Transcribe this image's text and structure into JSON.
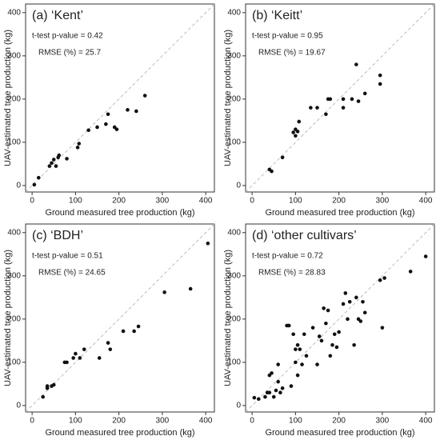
{
  "chart_data": [
    {
      "type": "scatter",
      "title": "(a) ‘Kent’",
      "annotations": [
        "t-test p-value = 0.42",
        "RMSE (%) = 25.7"
      ],
      "x_label": "Ground measured tree production (kg)",
      "y_label": "UAV-estimated tree production (kg)",
      "color": "#111111",
      "xlim": [
        -15,
        420
      ],
      "ylim": [
        -15,
        420
      ],
      "xticks": [
        0,
        100,
        200,
        300,
        400
      ],
      "yticks": [
        0,
        100,
        200,
        300,
        400
      ],
      "x": [
        5,
        15,
        40,
        45,
        50,
        55,
        60,
        62,
        80,
        105,
        108,
        130,
        150,
        170,
        175,
        190,
        195,
        220,
        240,
        260
      ],
      "values": [
        2,
        18,
        45,
        52,
        60,
        45,
        65,
        70,
        62,
        88,
        97,
        128,
        135,
        142,
        165,
        135,
        130,
        175,
        172,
        208
      ]
    },
    {
      "type": "scatter",
      "title": "(b) ‘Keitt’",
      "annotations": [
        "t-test p-value = 0.95",
        "RMSE (%) = 19.67"
      ],
      "x_label": "Ground measured tree production (kg)",
      "y_label": "UAV-estimated tree production (kg)",
      "color": "#111111",
      "xlim": [
        -15,
        420
      ],
      "ylim": [
        -15,
        420
      ],
      "xticks": [
        0,
        100,
        200,
        300,
        400
      ],
      "yticks": [
        0,
        100,
        200,
        300,
        400
      ],
      "x": [
        40,
        45,
        70,
        95,
        100,
        100,
        105,
        108,
        135,
        150,
        170,
        175,
        180,
        210,
        210,
        230,
        240,
        245,
        260,
        295,
        295
      ],
      "values": [
        37,
        33,
        65,
        123,
        115,
        130,
        125,
        148,
        180,
        180,
        165,
        200,
        200,
        180,
        200,
        200,
        280,
        195,
        213,
        255,
        235
      ]
    },
    {
      "type": "scatter",
      "title": "(c) ‘BDH’",
      "annotations": [
        "t-test p-value = 0.51",
        "RMSE (%) = 24.65"
      ],
      "x_label": "Ground measured tree production (kg)",
      "y_label": "UAV-estimated tree production (kg)",
      "color": "#111111",
      "xlim": [
        -15,
        420
      ],
      "ylim": [
        -15,
        420
      ],
      "xticks": [
        0,
        100,
        200,
        300,
        400
      ],
      "yticks": [
        0,
        100,
        200,
        300,
        400
      ],
      "x": [
        25,
        35,
        35,
        45,
        50,
        75,
        80,
        95,
        100,
        110,
        120,
        155,
        175,
        180,
        210,
        235,
        245,
        305,
        365,
        405
      ],
      "values": [
        20,
        40,
        45,
        45,
        48,
        100,
        100,
        110,
        120,
        110,
        130,
        110,
        145,
        130,
        172,
        172,
        183,
        262,
        270,
        375
      ]
    },
    {
      "type": "scatter",
      "title": "(d) ‘other cultivars’",
      "annotations": [
        "t-test p-value = 0.72",
        "RMSE (%) = 28.83"
      ],
      "x_label": "Ground measured tree production (kg)",
      "y_label": "UAV-estimated tree production (kg)",
      "color": "#111111",
      "xlim": [
        -15,
        420
      ],
      "ylim": [
        -15,
        420
      ],
      "xticks": [
        0,
        100,
        200,
        300,
        400
      ],
      "yticks": [
        0,
        100,
        200,
        300,
        400
      ],
      "x": [
        5,
        15,
        30,
        35,
        40,
        40,
        45,
        50,
        55,
        60,
        60,
        65,
        70,
        80,
        85,
        90,
        95,
        100,
        100,
        105,
        105,
        110,
        115,
        120,
        125,
        140,
        150,
        155,
        160,
        165,
        170,
        175,
        180,
        185,
        190,
        195,
        200,
        210,
        215,
        220,
        225,
        235,
        240,
        245,
        250,
        255,
        260,
        295,
        300,
        305,
        365,
        400
      ],
      "values": [
        18,
        15,
        20,
        30,
        70,
        30,
        75,
        20,
        35,
        95,
        55,
        30,
        40,
        185,
        185,
        45,
        165,
        130,
        100,
        140,
        70,
        130,
        95,
        165,
        115,
        180,
        95,
        160,
        150,
        225,
        190,
        220,
        115,
        140,
        165,
        135,
        170,
        235,
        260,
        200,
        240,
        140,
        250,
        200,
        195,
        240,
        215,
        290,
        180,
        295,
        310,
        345
      ]
    }
  ]
}
